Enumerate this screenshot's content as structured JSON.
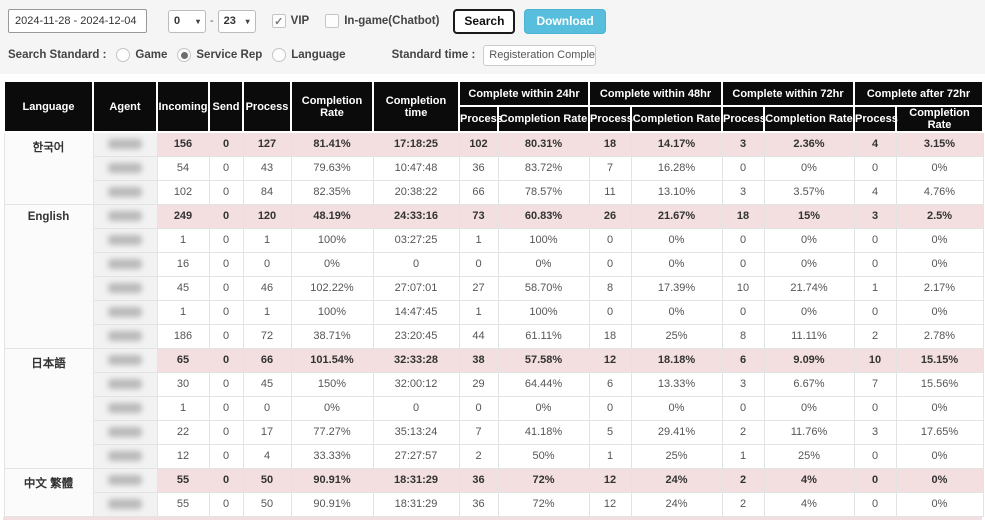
{
  "toolbar": {
    "date_range": "2024-11-28 - 2024-12-04",
    "hour_from": "0",
    "hour_to": "23",
    "caret": "▾",
    "dash": "-",
    "vip_label": "VIP",
    "vip_checked": "✓",
    "chatbot_label": "In-game(Chatbot)",
    "search_label": "Search",
    "download_label": "Download",
    "download_color": "#57bfdd"
  },
  "filters": {
    "search_standard_label": "Search Standard :",
    "options": [
      {
        "label": "Game",
        "selected": false
      },
      {
        "label": "Service Rep",
        "selected": true
      },
      {
        "label": "Language",
        "selected": false
      }
    ],
    "standard_time_label": "Standard time :",
    "standard_time_value": "Registeration Complete ~ Cor"
  },
  "table": {
    "colors": {
      "header_bg": "#0b0b0b",
      "summary_bg": "#f3dfdf"
    },
    "main_headers": [
      "Language",
      "Agent",
      "Incoming",
      "Send",
      "Process",
      "Completion Rate",
      "Completion time"
    ],
    "group_headers": [
      "Complete within 24hr",
      "Complete within 48hr",
      "Complete within 72hr",
      "Complete after 72hr"
    ],
    "sub_headers": [
      "Process",
      "Completion Rate"
    ],
    "groups": [
      {
        "language": "한국어",
        "rows": [
          {
            "summary": true,
            "cells": [
              "156",
              "0",
              "127",
              "81.41%",
              "17:18:25",
              "102",
              "80.31%",
              "18",
              "14.17%",
              "3",
              "2.36%",
              "4",
              "3.15%"
            ]
          },
          {
            "summary": false,
            "cells": [
              "54",
              "0",
              "43",
              "79.63%",
              "10:47:48",
              "36",
              "83.72%",
              "7",
              "16.28%",
              "0",
              "0%",
              "0",
              "0%"
            ]
          },
          {
            "summary": false,
            "cells": [
              "102",
              "0",
              "84",
              "82.35%",
              "20:38:22",
              "66",
              "78.57%",
              "11",
              "13.10%",
              "3",
              "3.57%",
              "4",
              "4.76%"
            ]
          }
        ]
      },
      {
        "language": "English",
        "rows": [
          {
            "summary": true,
            "cells": [
              "249",
              "0",
              "120",
              "48.19%",
              "24:33:16",
              "73",
              "60.83%",
              "26",
              "21.67%",
              "18",
              "15%",
              "3",
              "2.5%"
            ]
          },
          {
            "summary": false,
            "cells": [
              "1",
              "0",
              "1",
              "100%",
              "03:27:25",
              "1",
              "100%",
              "0",
              "0%",
              "0",
              "0%",
              "0",
              "0%"
            ]
          },
          {
            "summary": false,
            "cells": [
              "16",
              "0",
              "0",
              "0%",
              "0",
              "0",
              "0%",
              "0",
              "0%",
              "0",
              "0%",
              "0",
              "0%"
            ]
          },
          {
            "summary": false,
            "cells": [
              "45",
              "0",
              "46",
              "102.22%",
              "27:07:01",
              "27",
              "58.70%",
              "8",
              "17.39%",
              "10",
              "21.74%",
              "1",
              "2.17%"
            ]
          },
          {
            "summary": false,
            "cells": [
              "1",
              "0",
              "1",
              "100%",
              "14:47:45",
              "1",
              "100%",
              "0",
              "0%",
              "0",
              "0%",
              "0",
              "0%"
            ]
          },
          {
            "summary": false,
            "cells": [
              "186",
              "0",
              "72",
              "38.71%",
              "23:20:45",
              "44",
              "61.11%",
              "18",
              "25%",
              "8",
              "11.11%",
              "2",
              "2.78%"
            ]
          }
        ]
      },
      {
        "language": "日本語",
        "rows": [
          {
            "summary": true,
            "cells": [
              "65",
              "0",
              "66",
              "101.54%",
              "32:33:28",
              "38",
              "57.58%",
              "12",
              "18.18%",
              "6",
              "9.09%",
              "10",
              "15.15%"
            ]
          },
          {
            "summary": false,
            "cells": [
              "30",
              "0",
              "45",
              "150%",
              "32:00:12",
              "29",
              "64.44%",
              "6",
              "13.33%",
              "3",
              "6.67%",
              "7",
              "15.56%"
            ]
          },
          {
            "summary": false,
            "cells": [
              "1",
              "0",
              "0",
              "0%",
              "0",
              "0",
              "0%",
              "0",
              "0%",
              "0",
              "0%",
              "0",
              "0%"
            ]
          },
          {
            "summary": false,
            "cells": [
              "22",
              "0",
              "17",
              "77.27%",
              "35:13:24",
              "7",
              "41.18%",
              "5",
              "29.41%",
              "2",
              "11.76%",
              "3",
              "17.65%"
            ]
          },
          {
            "summary": false,
            "cells": [
              "12",
              "0",
              "4",
              "33.33%",
              "27:27:57",
              "2",
              "50%",
              "1",
              "25%",
              "1",
              "25%",
              "0",
              "0%"
            ]
          }
        ]
      },
      {
        "language": "中文 繁體",
        "rows": [
          {
            "summary": true,
            "cells": [
              "55",
              "0",
              "50",
              "90.91%",
              "18:31:29",
              "36",
              "72%",
              "12",
              "24%",
              "2",
              "4%",
              "0",
              "0%"
            ]
          },
          {
            "summary": false,
            "cells": [
              "55",
              "0",
              "50",
              "90.91%",
              "18:31:29",
              "36",
              "72%",
              "12",
              "24%",
              "2",
              "4%",
              "0",
              "0%"
            ]
          }
        ]
      }
    ]
  }
}
